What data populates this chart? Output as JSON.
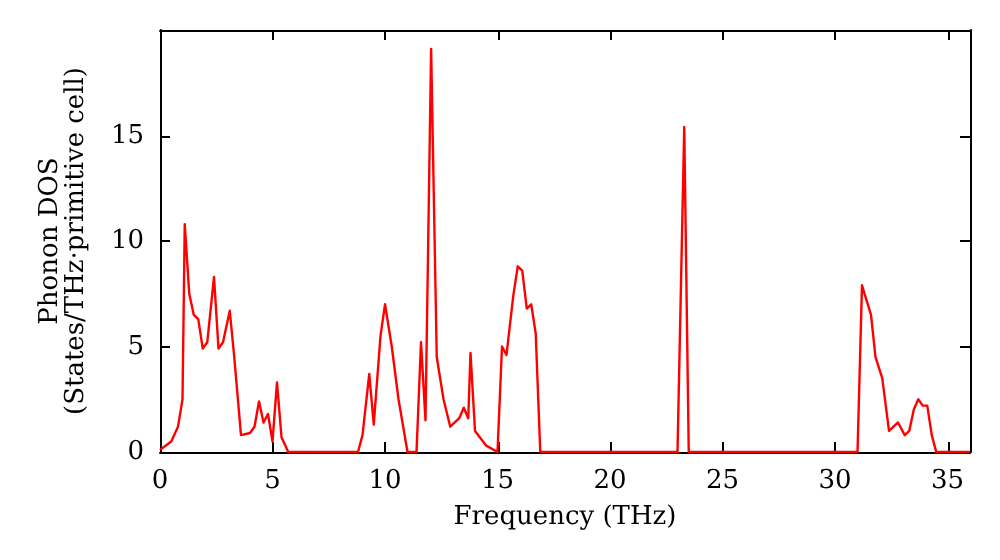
{
  "chart_data": {
    "type": "line",
    "xlabel": "Frequency (THz)",
    "ylabel": "Phonon DOS\n(States/THz·primitive cell)",
    "x": [
      0,
      0.5,
      0.8,
      1.0,
      1.1,
      1.3,
      1.5,
      1.7,
      1.9,
      2.1,
      2.4,
      2.6,
      2.8,
      3.1,
      3.3,
      3.6,
      4.0,
      4.2,
      4.4,
      4.6,
      4.8,
      5.0,
      5.2,
      5.4,
      5.7,
      8.8,
      9.0,
      9.3,
      9.5,
      9.8,
      10.0,
      10.3,
      10.6,
      11.0,
      11.4,
      11.6,
      11.8,
      12.05,
      12.3,
      12.6,
      12.9,
      13.1,
      13.3,
      13.5,
      13.7,
      13.8,
      14.0,
      14.5,
      15.0,
      15.2,
      15.4,
      15.7,
      15.9,
      16.1,
      16.3,
      16.5,
      16.7,
      16.9,
      23.0,
      23.3,
      23.5,
      31.0,
      31.2,
      31.6,
      31.8,
      32.1,
      32.4,
      32.6,
      32.8,
      33.1,
      33.3,
      33.5,
      33.7,
      33.9,
      34.1,
      34.3,
      34.5,
      36
    ],
    "series": [
      {
        "color": "#ff0000",
        "values": [
          0.1,
          0.5,
          1.2,
          2.5,
          10.8,
          7.5,
          6.5,
          6.3,
          4.9,
          5.2,
          8.3,
          4.9,
          5.2,
          6.7,
          4.5,
          0.8,
          0.9,
          1.2,
          2.4,
          1.4,
          1.8,
          0.5,
          3.3,
          0.7,
          0,
          0,
          0.8,
          3.7,
          1.3,
          5.5,
          7.0,
          5.0,
          2.5,
          0,
          0,
          5.2,
          1.5,
          19.1,
          4.5,
          2.5,
          1.2,
          1.4,
          1.6,
          2.1,
          1.6,
          4.7,
          1.0,
          0.3,
          0,
          5.0,
          4.6,
          7.4,
          8.8,
          8.6,
          6.8,
          7.0,
          5.6,
          0,
          0,
          15.4,
          0,
          0,
          7.9,
          6.5,
          4.5,
          3.5,
          1.0,
          1.2,
          1.4,
          0.8,
          1.0,
          2.0,
          2.5,
          2.2,
          2.2,
          0.8,
          0,
          0
        ]
      }
    ],
    "xlim": [
      0,
      36
    ],
    "xticks": [
      0,
      5,
      10,
      15,
      20,
      25,
      30,
      35
    ],
    "ylim": [
      0,
      20
    ],
    "yticks": [
      0,
      5,
      10,
      15
    ],
    "grid": false,
    "marker": "none",
    "line_style": "solid"
  }
}
